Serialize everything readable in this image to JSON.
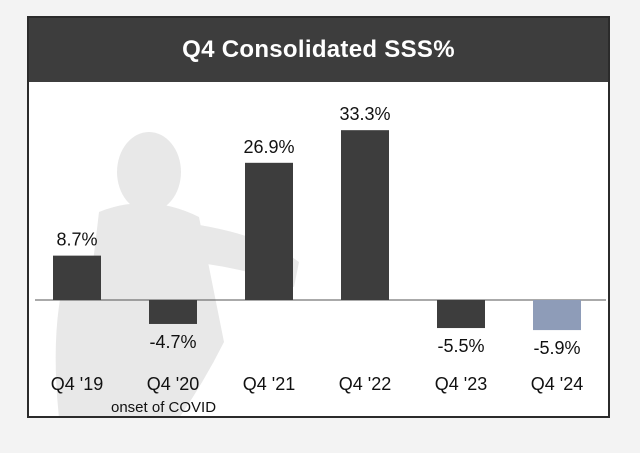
{
  "chart_data": {
    "type": "bar",
    "title": "Q4 Consolidated SSS%",
    "categories": [
      "Q4 '19",
      "Q4 '20",
      "Q4 '21",
      "Q4 '22",
      "Q4 '23",
      "Q4 '24"
    ],
    "values": [
      8.7,
      -4.7,
      26.9,
      33.3,
      -5.5,
      -5.9
    ],
    "value_labels": [
      "8.7%",
      "-4.7%",
      "26.9%",
      "33.3%",
      "-5.5%",
      "-5.9%"
    ],
    "bar_colors": [
      "#3d3d3d",
      "#3d3d3d",
      "#3d3d3d",
      "#3d3d3d",
      "#3d3d3d",
      "#8e9cb8"
    ],
    "annotations": [
      {
        "category": "Q4 '20",
        "text": "onset of COVID"
      }
    ],
    "ylim": [
      -10,
      40
    ],
    "grid": false,
    "legend": "none"
  }
}
